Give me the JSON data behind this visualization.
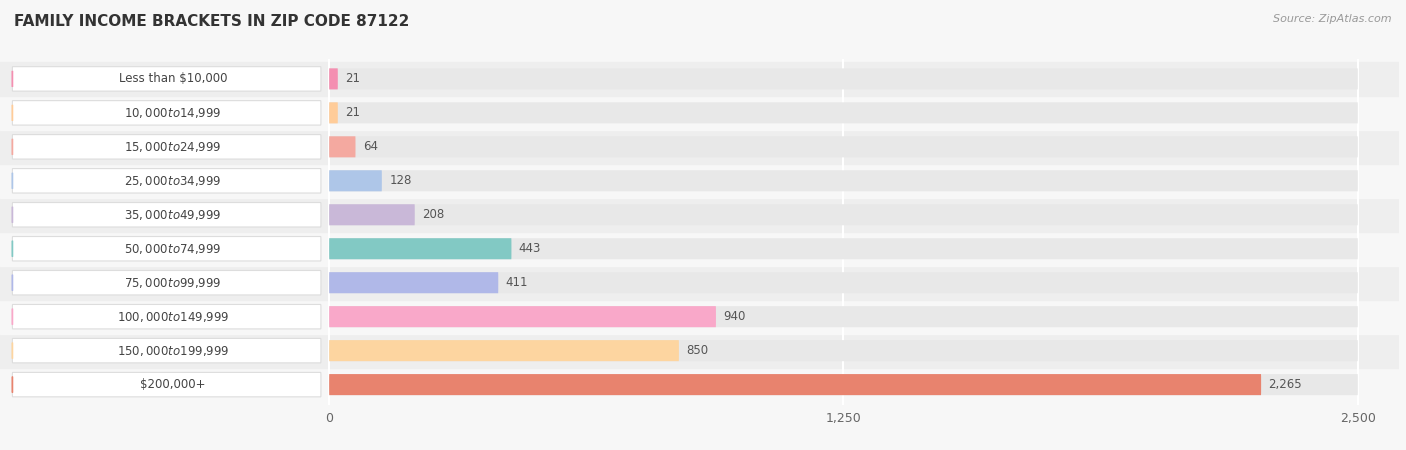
{
  "title": "FAMILY INCOME BRACKETS IN ZIP CODE 87122",
  "source": "Source: ZipAtlas.com",
  "categories": [
    "Less than $10,000",
    "$10,000 to $14,999",
    "$15,000 to $24,999",
    "$25,000 to $34,999",
    "$35,000 to $49,999",
    "$50,000 to $74,999",
    "$75,000 to $99,999",
    "$100,000 to $149,999",
    "$150,000 to $199,999",
    "$200,000+"
  ],
  "values": [
    21,
    21,
    64,
    128,
    208,
    443,
    411,
    940,
    850,
    2265
  ],
  "bar_colors": [
    "#f48fb1",
    "#ffcc99",
    "#f4a9a0",
    "#aec6e8",
    "#c9b8d8",
    "#82c9c4",
    "#b0b8e8",
    "#f9a8c9",
    "#fdd5a0",
    "#e8836e"
  ],
  "xlim_data": [
    0,
    2500
  ],
  "xticks": [
    0,
    1250,
    2500
  ],
  "background_color": "#f7f7f7",
  "row_bg_light": "#f7f7f7",
  "row_bg_dark": "#eeeeee",
  "grid_color": "#ffffff",
  "bar_bg_color": "#e8e8e8",
  "label_box_color": "#ffffff",
  "label_text_color": "#444444",
  "value_text_color": "#555555",
  "title_color": "#333333",
  "source_color": "#999999",
  "title_fontsize": 11,
  "source_fontsize": 8,
  "label_fontsize": 8.5,
  "value_fontsize": 8.5,
  "tick_fontsize": 9
}
